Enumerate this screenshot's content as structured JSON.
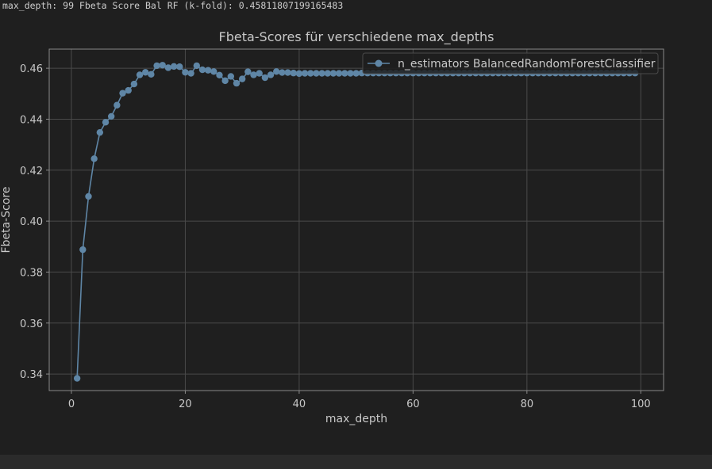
{
  "output": {
    "line": "max_depth: 99 Fbeta Score Bal RF (k-fold): 0.45811807199165483"
  },
  "colors": {
    "background": "#1f1f1f",
    "grid": "#4a4a4a",
    "axis_text": "#c8c8c8",
    "series": "#5f86a6",
    "legend_bg": "#1f1f1f",
    "legend_border": "#4a4a4a"
  },
  "chart_data": {
    "type": "line",
    "title": "Fbeta-Scores für verschiedene max_depths",
    "xlabel": "max_depth",
    "ylabel": "Fbeta-Score",
    "xlim": [
      -3.9,
      104
    ],
    "ylim": [
      0.3335,
      0.4675
    ],
    "xticks": [
      0,
      20,
      40,
      60,
      80,
      100
    ],
    "xtick_labels": [
      "0",
      "20",
      "40",
      "60",
      "80",
      "100"
    ],
    "yticks": [
      0.34,
      0.36,
      0.38,
      0.4,
      0.42,
      0.44,
      0.46
    ],
    "ytick_labels": [
      "0.34",
      "0.36",
      "0.38",
      "0.40",
      "0.42",
      "0.44",
      "0.46"
    ],
    "grid": true,
    "legend_position": "top-right",
    "series": [
      {
        "name": "n_estimators BalancedRandomForestClassifier",
        "marker": "circle",
        "x": [
          1,
          2,
          3,
          4,
          5,
          6,
          7,
          8,
          9,
          10,
          11,
          12,
          13,
          14,
          15,
          16,
          17,
          18,
          19,
          20,
          21,
          22,
          23,
          24,
          25,
          26,
          27,
          28,
          29,
          30,
          31,
          32,
          33,
          34,
          35,
          36,
          37,
          38,
          39,
          40,
          41,
          42,
          43,
          44,
          45,
          46,
          47,
          48,
          49,
          50,
          51,
          52,
          53,
          54,
          55,
          56,
          57,
          58,
          59,
          60,
          61,
          62,
          63,
          64,
          65,
          66,
          67,
          68,
          69,
          70,
          71,
          72,
          73,
          74,
          75,
          76,
          77,
          78,
          79,
          80,
          81,
          82,
          83,
          84,
          85,
          86,
          87,
          88,
          89,
          90,
          91,
          92,
          93,
          94,
          95,
          96,
          97,
          98,
          99
        ],
        "y": [
          0.3383,
          0.3888,
          0.4097,
          0.4245,
          0.4348,
          0.4388,
          0.4411,
          0.4455,
          0.4502,
          0.4513,
          0.4538,
          0.4574,
          0.4584,
          0.4576,
          0.461,
          0.4612,
          0.4602,
          0.4607,
          0.4606,
          0.4584,
          0.458,
          0.461,
          0.4594,
          0.4592,
          0.4587,
          0.4573,
          0.4551,
          0.4568,
          0.4541,
          0.4558,
          0.4586,
          0.4574,
          0.458,
          0.4563,
          0.4574,
          0.4587,
          0.4583,
          0.4583,
          0.4581,
          0.4579,
          0.458,
          0.458,
          0.458,
          0.458,
          0.458,
          0.458,
          0.458,
          0.458,
          0.458,
          0.458,
          0.4581,
          0.4581,
          0.4581,
          0.4581,
          0.4581,
          0.4581,
          0.4581,
          0.4581,
          0.4581,
          0.4581,
          0.4581,
          0.4581,
          0.4581,
          0.4581,
          0.4581,
          0.4581,
          0.4581,
          0.4581,
          0.4581,
          0.4581,
          0.4581,
          0.4581,
          0.4581,
          0.4581,
          0.4581,
          0.4581,
          0.4581,
          0.4581,
          0.4581,
          0.4581,
          0.4581,
          0.4581,
          0.4581,
          0.4581,
          0.4581,
          0.4581,
          0.4581,
          0.4581,
          0.4581,
          0.4581,
          0.4581,
          0.4581,
          0.4581,
          0.4581,
          0.4581,
          0.4581,
          0.4581,
          0.4581,
          0.4581
        ]
      }
    ]
  }
}
